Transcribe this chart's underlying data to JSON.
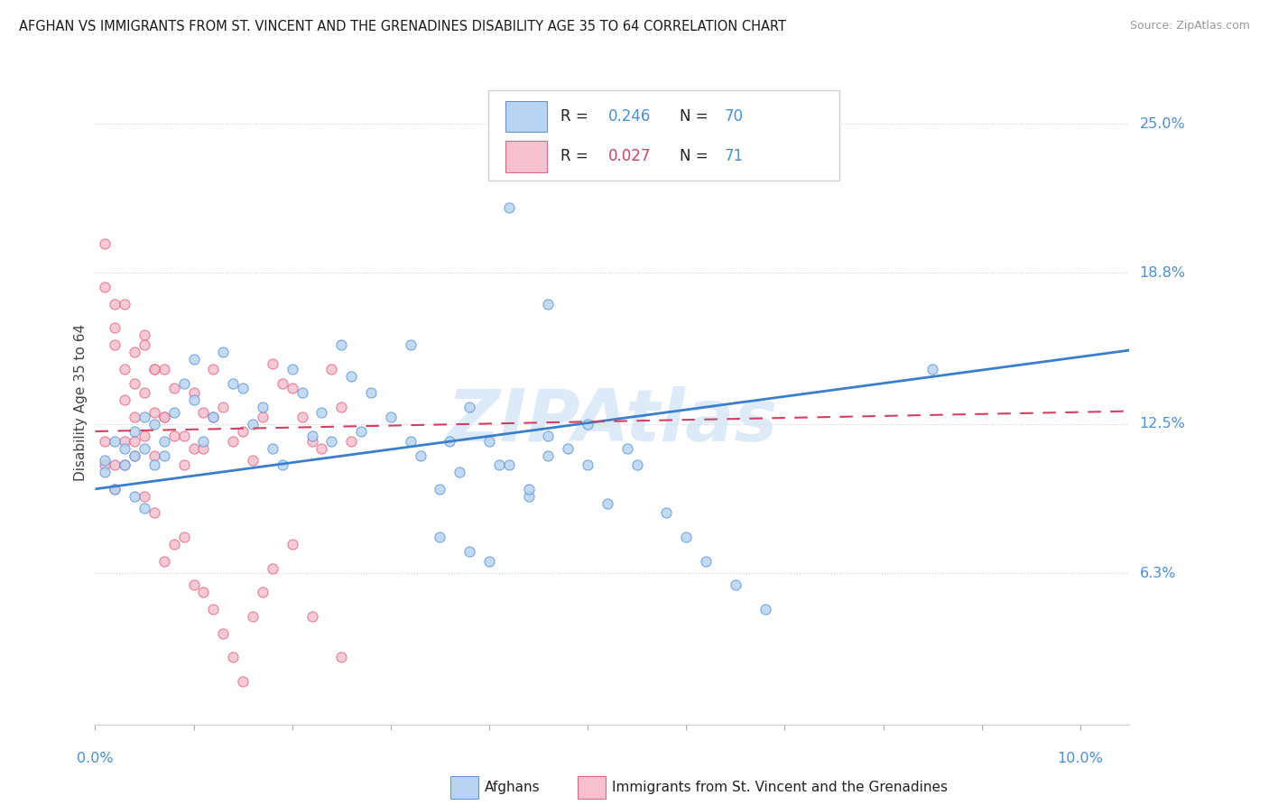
{
  "title": "AFGHAN VS IMMIGRANTS FROM ST. VINCENT AND THE GRENADINES DISABILITY AGE 35 TO 64 CORRELATION CHART",
  "source": "Source: ZipAtlas.com",
  "ylabel": "Disability Age 35 to 64",
  "ytick_vals": [
    0.063,
    0.125,
    0.188,
    0.25
  ],
  "ytick_labels": [
    "6.3%",
    "12.5%",
    "18.8%",
    "25.0%"
  ],
  "xrange": [
    0.0,
    0.105
  ],
  "yrange": [
    0.0,
    0.268
  ],
  "legend_r1": "0.246",
  "legend_n1": "70",
  "legend_r2": "0.027",
  "legend_n2": "71",
  "color_blue": "#b8d4f0",
  "color_blue_edge": "#5590d8",
  "color_pink": "#f5c0cf",
  "color_pink_edge": "#e06080",
  "color_blue_line": "#3a7fcc",
  "color_pink_line": "#d04060",
  "color_axis": "#4a90d9",
  "watermark": "ZIPAtlas",
  "watermark_color": "#ccdff5",
  "blue_slope": 0.55,
  "blue_intercept": 0.098,
  "pink_slope": 0.08,
  "pink_intercept": 0.122,
  "blue_x": [
    0.001,
    0.001,
    0.002,
    0.002,
    0.003,
    0.003,
    0.004,
    0.004,
    0.004,
    0.005,
    0.005,
    0.005,
    0.006,
    0.006,
    0.007,
    0.007,
    0.008,
    0.009,
    0.01,
    0.01,
    0.011,
    0.012,
    0.013,
    0.014,
    0.015,
    0.016,
    0.017,
    0.018,
    0.019,
    0.02,
    0.021,
    0.022,
    0.023,
    0.024,
    0.025,
    0.026,
    0.027,
    0.028,
    0.03,
    0.032,
    0.033,
    0.035,
    0.036,
    0.037,
    0.038,
    0.04,
    0.041,
    0.042,
    0.044,
    0.046,
    0.048,
    0.05,
    0.052,
    0.054,
    0.035,
    0.038,
    0.04,
    0.042,
    0.044,
    0.046,
    0.05,
    0.055,
    0.058,
    0.06,
    0.062,
    0.065,
    0.068,
    0.085,
    0.032,
    0.046
  ],
  "blue_y": [
    0.11,
    0.105,
    0.118,
    0.098,
    0.115,
    0.108,
    0.122,
    0.112,
    0.095,
    0.128,
    0.09,
    0.115,
    0.108,
    0.125,
    0.118,
    0.112,
    0.13,
    0.142,
    0.135,
    0.152,
    0.118,
    0.128,
    0.155,
    0.142,
    0.14,
    0.125,
    0.132,
    0.115,
    0.108,
    0.148,
    0.138,
    0.12,
    0.13,
    0.118,
    0.158,
    0.145,
    0.122,
    0.138,
    0.128,
    0.118,
    0.112,
    0.098,
    0.118,
    0.105,
    0.132,
    0.118,
    0.108,
    0.215,
    0.095,
    0.12,
    0.115,
    0.108,
    0.092,
    0.115,
    0.078,
    0.072,
    0.068,
    0.108,
    0.098,
    0.112,
    0.125,
    0.108,
    0.088,
    0.078,
    0.068,
    0.058,
    0.048,
    0.148,
    0.158,
    0.175
  ],
  "pink_x": [
    0.001,
    0.001,
    0.001,
    0.002,
    0.002,
    0.002,
    0.003,
    0.003,
    0.003,
    0.004,
    0.004,
    0.004,
    0.005,
    0.005,
    0.005,
    0.006,
    0.006,
    0.006,
    0.007,
    0.007,
    0.008,
    0.008,
    0.009,
    0.009,
    0.01,
    0.01,
    0.011,
    0.011,
    0.012,
    0.012,
    0.013,
    0.014,
    0.015,
    0.016,
    0.017,
    0.018,
    0.019,
    0.02,
    0.021,
    0.022,
    0.023,
    0.024,
    0.025,
    0.026,
    0.001,
    0.002,
    0.003,
    0.004,
    0.005,
    0.006,
    0.007,
    0.008,
    0.009,
    0.01,
    0.011,
    0.012,
    0.013,
    0.014,
    0.015,
    0.016,
    0.017,
    0.018,
    0.02,
    0.022,
    0.025,
    0.002,
    0.003,
    0.004,
    0.005,
    0.006,
    0.007
  ],
  "pink_y": [
    0.2,
    0.182,
    0.118,
    0.175,
    0.158,
    0.108,
    0.148,
    0.135,
    0.118,
    0.128,
    0.142,
    0.112,
    0.158,
    0.138,
    0.12,
    0.148,
    0.13,
    0.112,
    0.128,
    0.148,
    0.14,
    0.12,
    0.12,
    0.108,
    0.138,
    0.115,
    0.13,
    0.115,
    0.148,
    0.128,
    0.132,
    0.118,
    0.122,
    0.11,
    0.128,
    0.15,
    0.142,
    0.14,
    0.128,
    0.118,
    0.115,
    0.148,
    0.132,
    0.118,
    0.108,
    0.098,
    0.108,
    0.118,
    0.095,
    0.088,
    0.068,
    0.075,
    0.078,
    0.058,
    0.055,
    0.048,
    0.038,
    0.028,
    0.018,
    0.045,
    0.055,
    0.065,
    0.075,
    0.045,
    0.028,
    0.165,
    0.175,
    0.155,
    0.162,
    0.148,
    0.128
  ]
}
